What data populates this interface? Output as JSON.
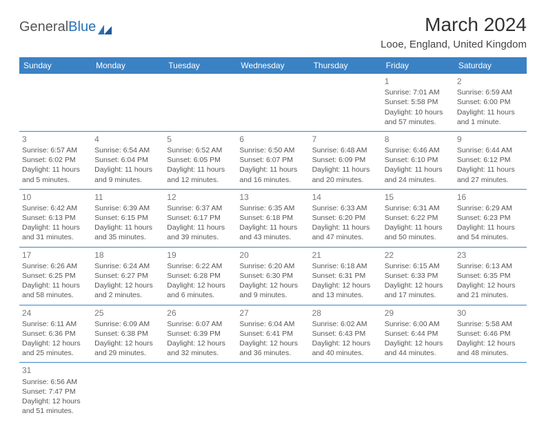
{
  "logo": {
    "text1": "General",
    "text2": "Blue"
  },
  "title": "March 2024",
  "location": "Looe, England, United Kingdom",
  "colors": {
    "header_bg": "#3b82c4",
    "header_fg": "#ffffff",
    "cell_border": "#3b82c4",
    "text": "#555555",
    "daynum": "#777777"
  },
  "weekdays": [
    "Sunday",
    "Monday",
    "Tuesday",
    "Wednesday",
    "Thursday",
    "Friday",
    "Saturday"
  ],
  "weeks": [
    [
      null,
      null,
      null,
      null,
      null,
      {
        "n": "1",
        "sunrise": "Sunrise: 7:01 AM",
        "sunset": "Sunset: 5:58 PM",
        "daylight": "Daylight: 10 hours and 57 minutes."
      },
      {
        "n": "2",
        "sunrise": "Sunrise: 6:59 AM",
        "sunset": "Sunset: 6:00 PM",
        "daylight": "Daylight: 11 hours and 1 minute."
      }
    ],
    [
      {
        "n": "3",
        "sunrise": "Sunrise: 6:57 AM",
        "sunset": "Sunset: 6:02 PM",
        "daylight": "Daylight: 11 hours and 5 minutes."
      },
      {
        "n": "4",
        "sunrise": "Sunrise: 6:54 AM",
        "sunset": "Sunset: 6:04 PM",
        "daylight": "Daylight: 11 hours and 9 minutes."
      },
      {
        "n": "5",
        "sunrise": "Sunrise: 6:52 AM",
        "sunset": "Sunset: 6:05 PM",
        "daylight": "Daylight: 11 hours and 12 minutes."
      },
      {
        "n": "6",
        "sunrise": "Sunrise: 6:50 AM",
        "sunset": "Sunset: 6:07 PM",
        "daylight": "Daylight: 11 hours and 16 minutes."
      },
      {
        "n": "7",
        "sunrise": "Sunrise: 6:48 AM",
        "sunset": "Sunset: 6:09 PM",
        "daylight": "Daylight: 11 hours and 20 minutes."
      },
      {
        "n": "8",
        "sunrise": "Sunrise: 6:46 AM",
        "sunset": "Sunset: 6:10 PM",
        "daylight": "Daylight: 11 hours and 24 minutes."
      },
      {
        "n": "9",
        "sunrise": "Sunrise: 6:44 AM",
        "sunset": "Sunset: 6:12 PM",
        "daylight": "Daylight: 11 hours and 27 minutes."
      }
    ],
    [
      {
        "n": "10",
        "sunrise": "Sunrise: 6:42 AM",
        "sunset": "Sunset: 6:13 PM",
        "daylight": "Daylight: 11 hours and 31 minutes."
      },
      {
        "n": "11",
        "sunrise": "Sunrise: 6:39 AM",
        "sunset": "Sunset: 6:15 PM",
        "daylight": "Daylight: 11 hours and 35 minutes."
      },
      {
        "n": "12",
        "sunrise": "Sunrise: 6:37 AM",
        "sunset": "Sunset: 6:17 PM",
        "daylight": "Daylight: 11 hours and 39 minutes."
      },
      {
        "n": "13",
        "sunrise": "Sunrise: 6:35 AM",
        "sunset": "Sunset: 6:18 PM",
        "daylight": "Daylight: 11 hours and 43 minutes."
      },
      {
        "n": "14",
        "sunrise": "Sunrise: 6:33 AM",
        "sunset": "Sunset: 6:20 PM",
        "daylight": "Daylight: 11 hours and 47 minutes."
      },
      {
        "n": "15",
        "sunrise": "Sunrise: 6:31 AM",
        "sunset": "Sunset: 6:22 PM",
        "daylight": "Daylight: 11 hours and 50 minutes."
      },
      {
        "n": "16",
        "sunrise": "Sunrise: 6:29 AM",
        "sunset": "Sunset: 6:23 PM",
        "daylight": "Daylight: 11 hours and 54 minutes."
      }
    ],
    [
      {
        "n": "17",
        "sunrise": "Sunrise: 6:26 AM",
        "sunset": "Sunset: 6:25 PM",
        "daylight": "Daylight: 11 hours and 58 minutes."
      },
      {
        "n": "18",
        "sunrise": "Sunrise: 6:24 AM",
        "sunset": "Sunset: 6:27 PM",
        "daylight": "Daylight: 12 hours and 2 minutes."
      },
      {
        "n": "19",
        "sunrise": "Sunrise: 6:22 AM",
        "sunset": "Sunset: 6:28 PM",
        "daylight": "Daylight: 12 hours and 6 minutes."
      },
      {
        "n": "20",
        "sunrise": "Sunrise: 6:20 AM",
        "sunset": "Sunset: 6:30 PM",
        "daylight": "Daylight: 12 hours and 9 minutes."
      },
      {
        "n": "21",
        "sunrise": "Sunrise: 6:18 AM",
        "sunset": "Sunset: 6:31 PM",
        "daylight": "Daylight: 12 hours and 13 minutes."
      },
      {
        "n": "22",
        "sunrise": "Sunrise: 6:15 AM",
        "sunset": "Sunset: 6:33 PM",
        "daylight": "Daylight: 12 hours and 17 minutes."
      },
      {
        "n": "23",
        "sunrise": "Sunrise: 6:13 AM",
        "sunset": "Sunset: 6:35 PM",
        "daylight": "Daylight: 12 hours and 21 minutes."
      }
    ],
    [
      {
        "n": "24",
        "sunrise": "Sunrise: 6:11 AM",
        "sunset": "Sunset: 6:36 PM",
        "daylight": "Daylight: 12 hours and 25 minutes."
      },
      {
        "n": "25",
        "sunrise": "Sunrise: 6:09 AM",
        "sunset": "Sunset: 6:38 PM",
        "daylight": "Daylight: 12 hours and 29 minutes."
      },
      {
        "n": "26",
        "sunrise": "Sunrise: 6:07 AM",
        "sunset": "Sunset: 6:39 PM",
        "daylight": "Daylight: 12 hours and 32 minutes."
      },
      {
        "n": "27",
        "sunrise": "Sunrise: 6:04 AM",
        "sunset": "Sunset: 6:41 PM",
        "daylight": "Daylight: 12 hours and 36 minutes."
      },
      {
        "n": "28",
        "sunrise": "Sunrise: 6:02 AM",
        "sunset": "Sunset: 6:43 PM",
        "daylight": "Daylight: 12 hours and 40 minutes."
      },
      {
        "n": "29",
        "sunrise": "Sunrise: 6:00 AM",
        "sunset": "Sunset: 6:44 PM",
        "daylight": "Daylight: 12 hours and 44 minutes."
      },
      {
        "n": "30",
        "sunrise": "Sunrise: 5:58 AM",
        "sunset": "Sunset: 6:46 PM",
        "daylight": "Daylight: 12 hours and 48 minutes."
      }
    ],
    [
      {
        "n": "31",
        "sunrise": "Sunrise: 6:56 AM",
        "sunset": "Sunset: 7:47 PM",
        "daylight": "Daylight: 12 hours and 51 minutes."
      },
      null,
      null,
      null,
      null,
      null,
      null
    ]
  ]
}
